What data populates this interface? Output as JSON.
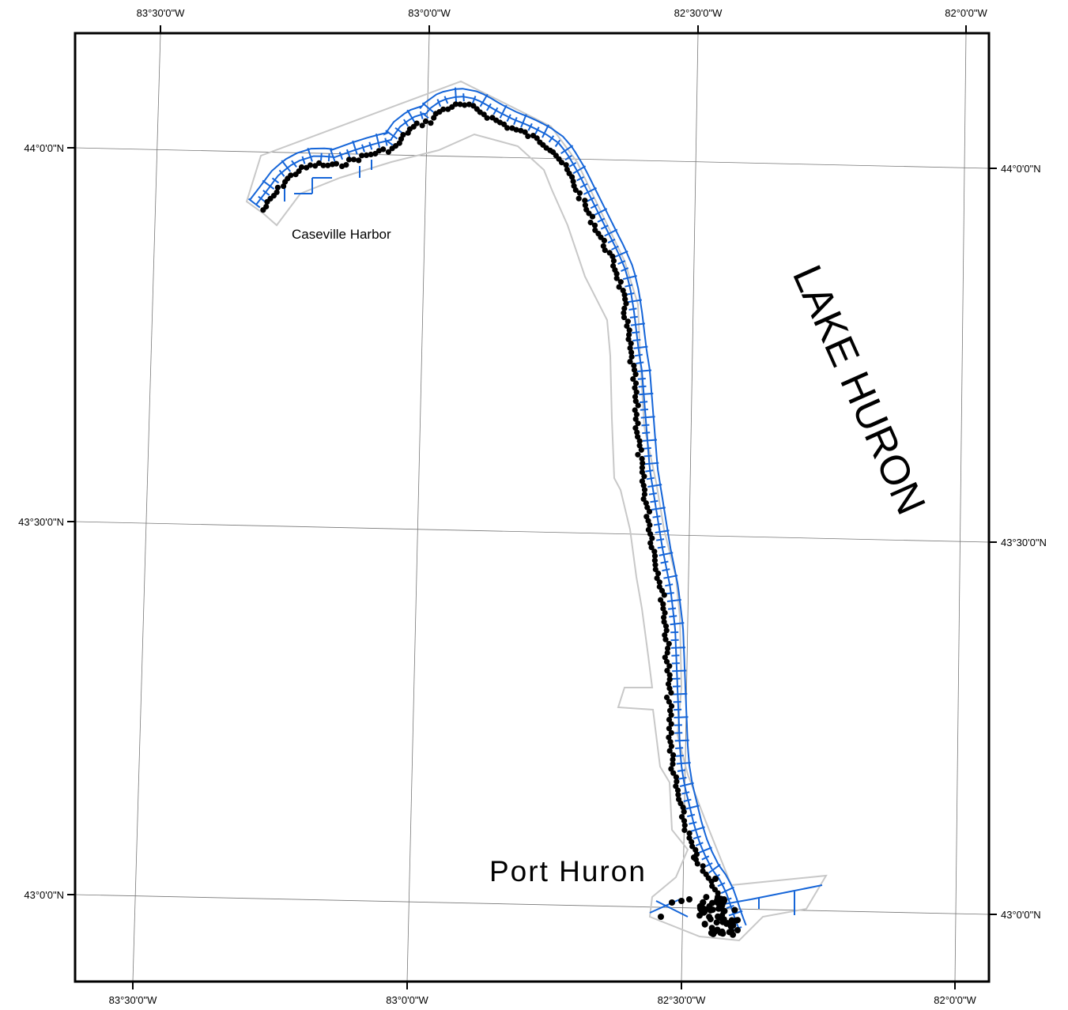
{
  "graticule": {
    "top_labels": [
      "83°30'0\"W",
      "83°0'0\"W",
      "82°30'0\"W",
      "82°0'0\"W"
    ],
    "bottom_labels": [
      "83°30'0\"W",
      "83°0'0\"W",
      "82°30'0\"W",
      "82°0'0\"W"
    ],
    "left_labels": [
      "44°0'0\"N",
      "43°30'0\"N",
      "43°0'0\"N"
    ],
    "right_labels": [
      "44°0'0\"N",
      "43°30'0\"N",
      "43°0'0\"N"
    ]
  },
  "places": {
    "caseville": "Caseville Harbor",
    "port_huron": "Port Huron",
    "lake": "LAKE HURON"
  },
  "colors": {
    "frame": "#000000",
    "graticule": "#777777",
    "boundary": "#c8c8c8",
    "transects": "#1565d8",
    "points": "#000000"
  }
}
